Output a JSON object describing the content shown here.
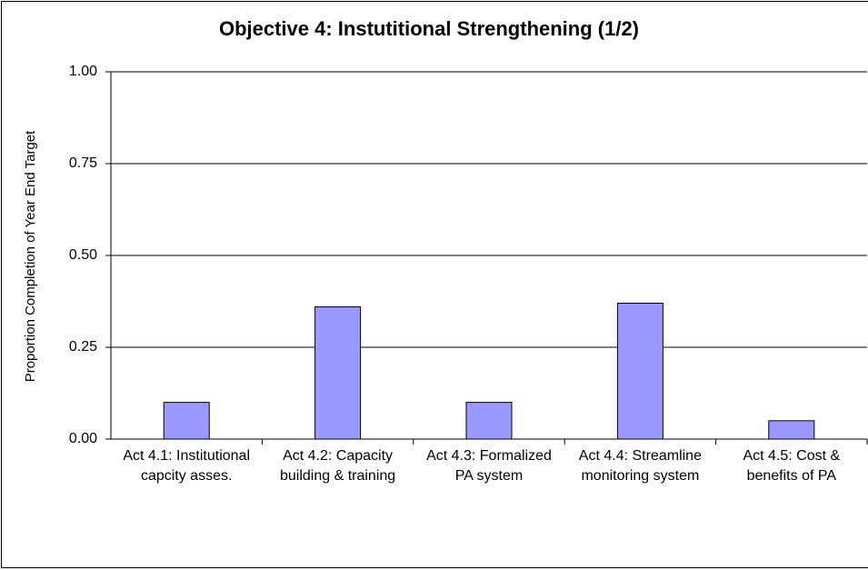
{
  "chart_data": {
    "type": "bar",
    "title": "Objective 4: Instutitional Strengthening (1/2)",
    "y_label": "Proportion Completion of Year End Target",
    "categories": [
      "Act 4.1: Institutional capcity asses.",
      "Act 4.2: Capacity building & training",
      "Act 4.3: Formalized PA system",
      "Act 4.4: Streamline monitoring system",
      "Act 4.5: Cost & benefits of PA"
    ],
    "values": [
      0.1,
      0.36,
      0.1,
      0.37,
      0.05
    ],
    "color": "#9999ff",
    "ylim": [
      0,
      1
    ],
    "yticks": [
      {
        "value": 0,
        "label": "0.00"
      },
      {
        "value": 0.25,
        "label": "0.25"
      },
      {
        "value": 0.5,
        "label": "0.50"
      },
      {
        "value": 0.75,
        "label": "0.75"
      },
      {
        "value": 1,
        "label": "1.00"
      }
    ],
    "grid": true
  }
}
